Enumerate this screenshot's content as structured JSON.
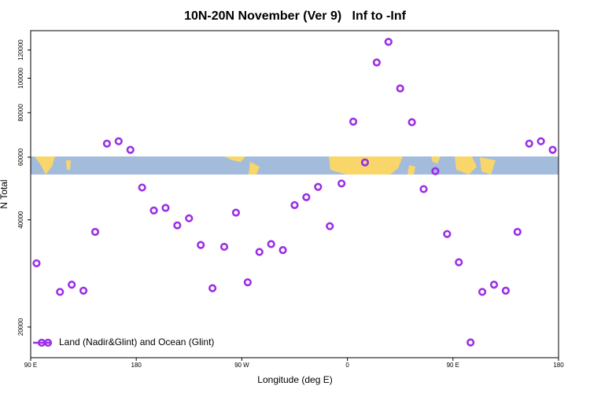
{
  "chart_data": {
    "type": "scatter",
    "title": "10N-20N November (Ver 9)   Inf to -Inf",
    "xlabel": "Longitude (deg E)",
    "ylabel": "N Total",
    "xlim": [
      90,
      540
    ],
    "xticks": [
      {
        "value": 90,
        "label": "90 E"
      },
      {
        "value": 180,
        "label": "180"
      },
      {
        "value": 270,
        "label": "90 W"
      },
      {
        "value": 360,
        "label": "0"
      },
      {
        "value": 450,
        "label": "90 E"
      },
      {
        "value": 540,
        "label": "180"
      }
    ],
    "ylim": [
      16400,
      136000
    ],
    "yticks": [
      20000,
      40000,
      60000,
      80000,
      100000,
      120000
    ],
    "log_y": true,
    "legend": "bottom-left",
    "series": [
      {
        "name": "Land (Nadir&Glint) and Ocean (Glint)",
        "color": "#9b2fe6",
        "x": [
          95,
          115,
          125,
          135,
          145,
          155,
          165,
          175,
          185,
          195,
          205,
          215,
          225,
          235,
          245,
          255,
          265,
          275,
          285,
          295,
          305,
          315,
          325,
          335,
          345,
          355,
          365,
          375,
          385,
          395,
          405,
          415,
          425,
          435,
          445,
          455,
          465,
          475,
          485,
          495,
          505,
          515,
          525,
          535
        ],
        "values": [
          30200,
          25100,
          26300,
          25300,
          37000,
          65500,
          66500,
          62900,
          49300,
          42500,
          43200,
          38600,
          40400,
          34000,
          25700,
          33600,
          41900,
          26700,
          32500,
          34200,
          32900,
          44000,
          46300,
          49500,
          38400,
          50600,
          75500,
          58000,
          110700,
          126500,
          93600,
          75200,
          48800,
          54800,
          36500,
          30400,
          18100,
          25100,
          26300,
          25300,
          37000,
          65500,
          66500,
          62900
        ]
      }
    ]
  }
}
